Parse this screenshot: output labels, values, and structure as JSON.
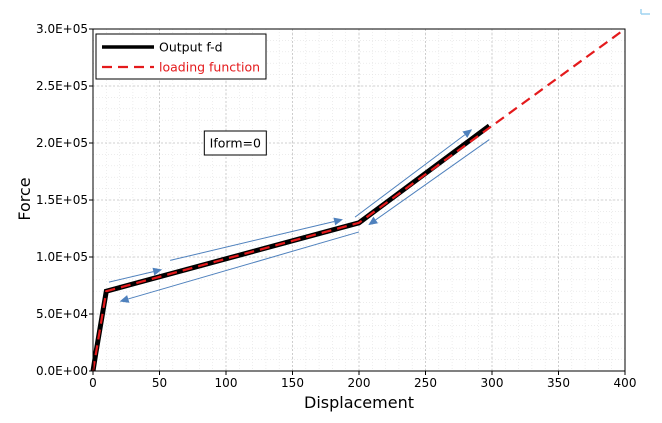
{
  "chart_data": {
    "type": "line",
    "xlabel": "Displacement",
    "ylabel": "Force",
    "xlim": [
      0,
      400
    ],
    "ylim": [
      0,
      300000
    ],
    "x_ticks": [
      0,
      50,
      100,
      150,
      200,
      250,
      300,
      350,
      400
    ],
    "y_ticks": [
      0,
      50000,
      100000,
      150000,
      200000,
      250000,
      300000
    ],
    "x_tick_labels": [
      "0",
      "50",
      "100",
      "150",
      "200",
      "250",
      "300",
      "350",
      "400"
    ],
    "y_tick_labels": [
      "0.0E+00",
      "5.0E+04",
      "1.0E+05",
      "1.5E+05",
      "2.0E+05",
      "2.5E+05",
      "3.0E+05"
    ],
    "grid": true,
    "legend_position": "top-left",
    "series": [
      {
        "name": "Output f-d",
        "color": "#000000",
        "style": "solid",
        "x": [
          0,
          2,
          10,
          200,
          298
        ],
        "y": [
          0,
          15000,
          70000,
          130000,
          215000
        ]
      },
      {
        "name": "loading function",
        "color": "#e41a1c",
        "style": "dashed",
        "x": [
          0,
          10,
          200,
          400
        ],
        "y": [
          0,
          70000,
          130000,
          300000
        ]
      }
    ],
    "annotation": {
      "text": "Iform=0",
      "x": 107,
      "y": 200000
    },
    "arrows_color": "#4f81bd",
    "arrows": [
      {
        "x1": 12,
        "y1": 78000,
        "x2": 52,
        "y2": 89000
      },
      {
        "x1": 58,
        "y1": 97000,
        "x2": 188,
        "y2": 133000
      },
      {
        "x1": 197,
        "y1": 135000,
        "x2": 285,
        "y2": 212000
      },
      {
        "x1": 298,
        "y1": 203000,
        "x2": 207,
        "y2": 128000
      },
      {
        "x1": 200,
        "y1": 122000,
        "x2": 20,
        "y2": 61000
      }
    ]
  }
}
